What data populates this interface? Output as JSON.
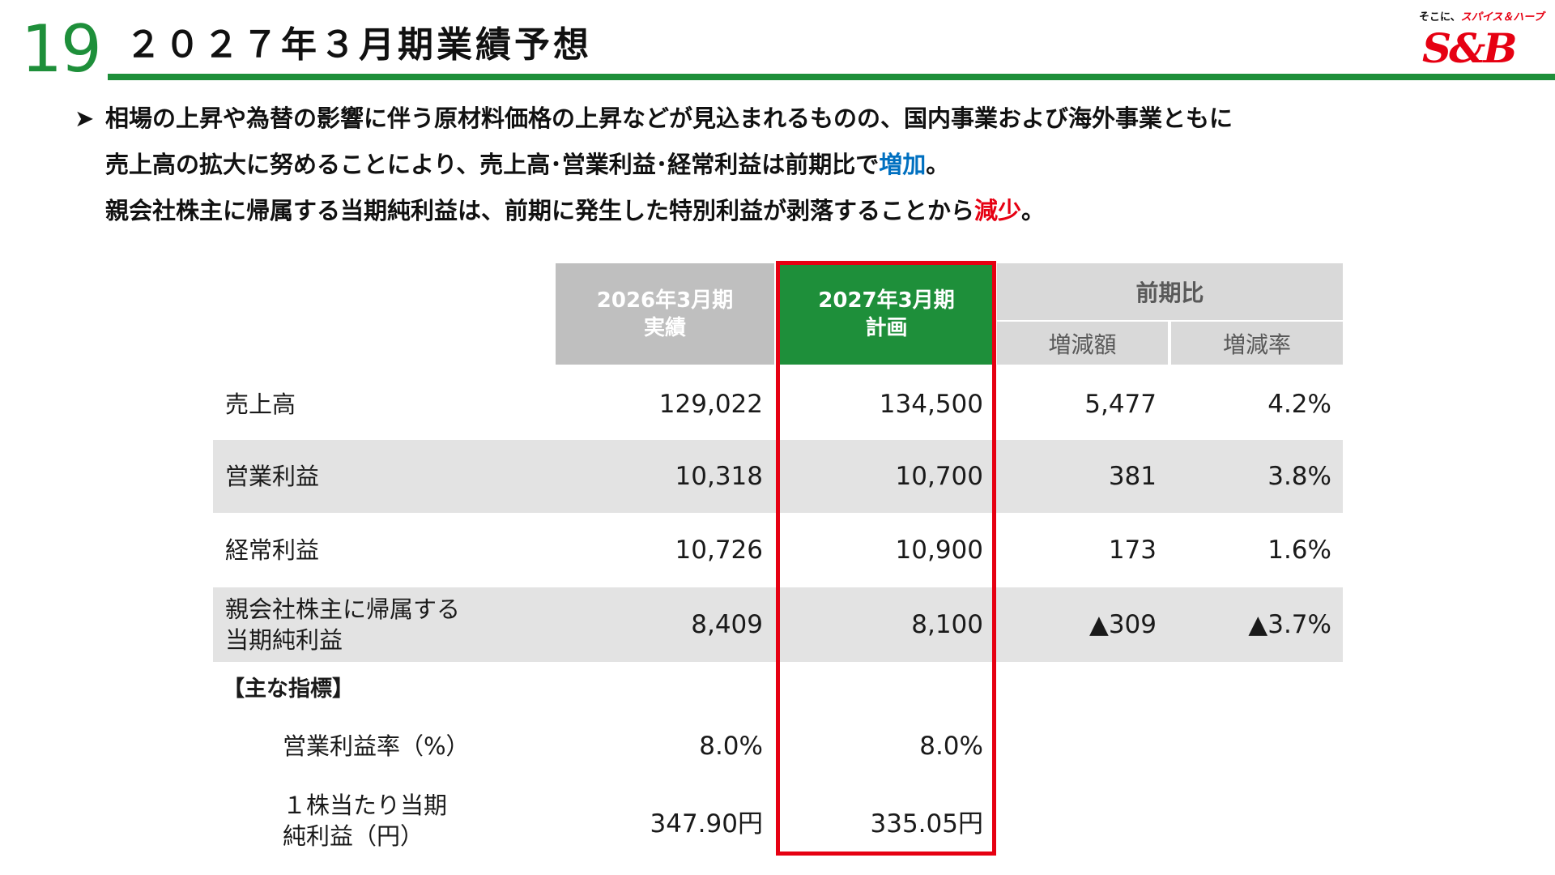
{
  "header": {
    "page_number": "19",
    "title": "２０２７年３月期業績予想"
  },
  "logo": {
    "tagline_prefix": "そこに、",
    "tagline_spice": "スパイス",
    "tagline_and": "＆",
    "tagline_herb": "ハーブ",
    "brand": "S&B"
  },
  "summary": {
    "arrow": "➤",
    "line1": "相場の上昇や為替の影響に伴う原材料価格の上昇などが見込まれるものの、国内事業および海外事業ともに",
    "line2_before": "売上高の拡大に努めることにより、売上高･営業利益･経常利益は前期比で",
    "line2_highlight": "増加",
    "line2_after": "。",
    "line3_before": "親会社株主に帰属する当期純利益は、前期に発生した特別利益が剥落することから",
    "line3_highlight": "減少",
    "line3_after": "。"
  },
  "table": {
    "col_prev": {
      "line1": "2026年3月期",
      "line2": "実績"
    },
    "col_plan": {
      "line1": "2027年3月期",
      "line2": "計画"
    },
    "col_compare": {
      "title": "前期比",
      "change_amount": "増減額",
      "change_rate": "増減率"
    },
    "rows": [
      {
        "label": "売上高",
        "prev": "129,022",
        "plan": "134,500",
        "change": "5,477",
        "rate": "4.2%"
      },
      {
        "label": "営業利益",
        "prev": "10,318",
        "plan": "10,700",
        "change": "381",
        "rate": "3.8%"
      },
      {
        "label": "経常利益",
        "prev": "10,726",
        "plan": "10,900",
        "change": "173",
        "rate": "1.6%"
      },
      {
        "label_line1": "親会社株主に帰属する",
        "label_line2": "当期純利益",
        "prev": "8,409",
        "plan": "8,100",
        "change": "▲309",
        "rate": "▲3.7%"
      }
    ],
    "indicators_title": "【主な指標】",
    "indicators": [
      {
        "label": "営業利益率（%）",
        "prev": "8.0%",
        "plan": "8.0%"
      },
      {
        "label_line1": "１株当たり当期",
        "label_line2": "純利益（円）",
        "prev": "347.90円",
        "plan": "335.05円"
      }
    ]
  },
  "colors": {
    "brand_green": "#1e8f3a",
    "header_gray": "#bfbfbf",
    "compare_gray": "#d9d9d9",
    "band_gray": "#e3e3e3",
    "highlight_red": "#e60012",
    "increase_blue": "#0070c0"
  }
}
